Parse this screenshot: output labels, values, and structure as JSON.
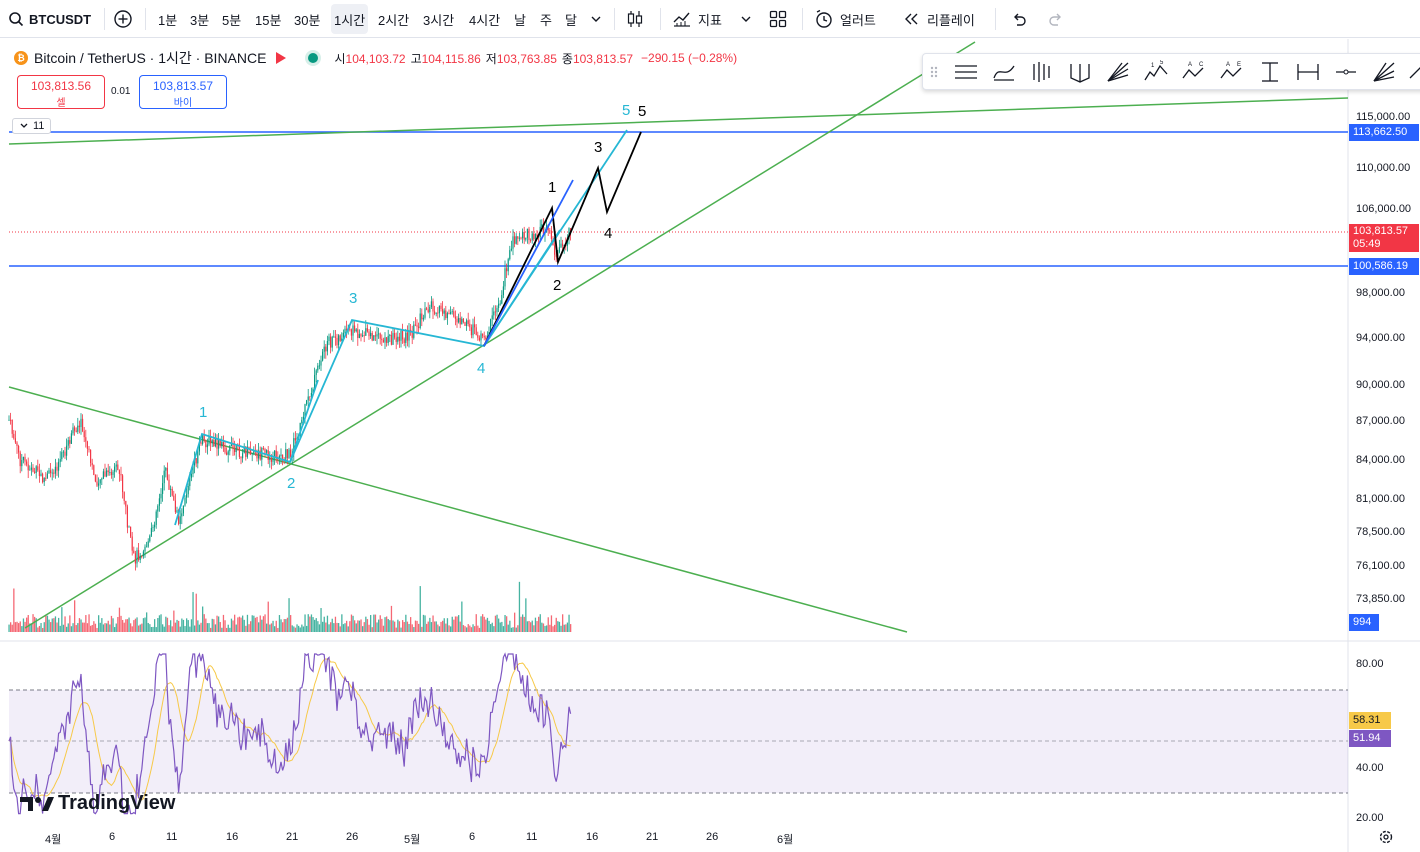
{
  "toolbar": {
    "symbol": "BTCUSDT",
    "intervals": [
      "1분",
      "3분",
      "5분",
      "15분",
      "30분",
      "1시간",
      "2시간",
      "3시간",
      "4시간",
      "날",
      "주",
      "달"
    ],
    "selected_interval": "1시간",
    "indicators_label": "지표",
    "alert_label": "얼러트",
    "replay_label": "리플레이"
  },
  "legend": {
    "title": "Bitcoin / TetherUS · 1시간 · BINANCE",
    "open_key": "시",
    "open": "104,103.72",
    "high_key": "고",
    "high": "104,115.86",
    "low_key": "저",
    "low": "103,763.85",
    "close_key": "종",
    "close": "103,813.57",
    "change": "−290.15 (−0.28%)"
  },
  "trade": {
    "sell_price": "103,813.56",
    "sell_label": "셀",
    "spread": "0.01",
    "buy_price": "103,813.57",
    "buy_label": "바이"
  },
  "collapse_count": "11",
  "price_axis": {
    "labels": [
      "115,000.00",
      "110,000.00",
      "106,000.00",
      "98,000.00",
      "94,000.00",
      "90,000.00",
      "87,000.00",
      "84,000.00",
      "81,000.00",
      "78,500.00",
      "76,100.00",
      "73,850.00"
    ],
    "tag_resistance": "113,662.50",
    "tag_current_price": "103,813.57",
    "tag_countdown": "05:49",
    "tag_support": "100,586.19",
    "tag_volume": "994"
  },
  "rsi_axis": {
    "labels": [
      "80.00",
      "40.00",
      "20.00"
    ],
    "tag_rsi": "58.31",
    "tag_ma": "51.94"
  },
  "time_axis": [
    "4월",
    "6",
    "11",
    "16",
    "21",
    "26",
    "5월",
    "6",
    "11",
    "16",
    "21",
    "26",
    "6월"
  ],
  "waves": {
    "cyan": [
      "1",
      "2",
      "3",
      "4",
      "5"
    ],
    "black": [
      "1",
      "2",
      "3",
      "4",
      "5"
    ]
  },
  "branding": "TradingView",
  "colors": {
    "up": "#089981",
    "down": "#f23645",
    "blue_line": "#2962ff",
    "green_line": "#4caf50",
    "cyan_wave": "#26b7d4",
    "rsi_line": "#7e57c2",
    "rsi_ma": "#f7c948"
  }
}
